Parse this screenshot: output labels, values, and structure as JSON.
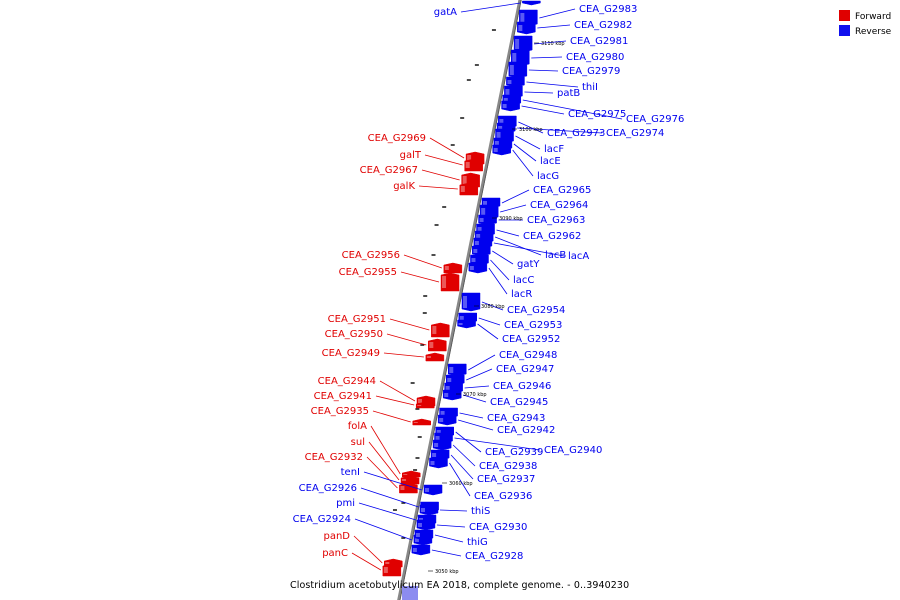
{
  "colors": {
    "forward": "#e00000",
    "reverse": "#0000ee",
    "axis": "#8a8a8a"
  },
  "legend": [
    {
      "label": "Forward",
      "color": "#e00000"
    },
    {
      "label": "Reverse",
      "color": "#1010ee"
    }
  ],
  "caption": "Clostridium acetobutylicum EA 2018, complete genome. - 0..3940230",
  "ticks": [
    "3110 kbp",
    "3100 kbp",
    "3090 kbp",
    "3080 kbp",
    "3070 kbp",
    "3060 kbp",
    "3050 kbp"
  ],
  "genes": [
    {
      "name": "gatA",
      "strand": "reverse",
      "side": "left"
    },
    {
      "name": "CEA_G2983",
      "strand": "reverse",
      "side": "right"
    },
    {
      "name": "CEA_G2982",
      "strand": "reverse",
      "side": "right"
    },
    {
      "name": "CEA_G2981",
      "strand": "reverse",
      "side": "right"
    },
    {
      "name": "CEA_G2980",
      "strand": "reverse",
      "side": "right"
    },
    {
      "name": "CEA_G2979",
      "strand": "reverse",
      "side": "right"
    },
    {
      "name": "thiI",
      "strand": "reverse",
      "side": "right"
    },
    {
      "name": "patB",
      "strand": "reverse",
      "side": "right"
    },
    {
      "name": "CEA_G2976",
      "strand": "reverse",
      "side": "right"
    },
    {
      "name": "CEA_G2975",
      "strand": "reverse",
      "side": "right"
    },
    {
      "name": "CEA_G2973",
      "strand": "reverse",
      "side": "right"
    },
    {
      "name": "CEA_G2974",
      "strand": "reverse",
      "side": "right"
    },
    {
      "name": "lacF",
      "strand": "reverse",
      "side": "right"
    },
    {
      "name": "lacE",
      "strand": "reverse",
      "side": "right"
    },
    {
      "name": "lacG",
      "strand": "reverse",
      "side": "right"
    },
    {
      "name": "CEA_G2969",
      "strand": "forward",
      "side": "left"
    },
    {
      "name": "galT",
      "strand": "forward",
      "side": "left"
    },
    {
      "name": "CEA_G2967",
      "strand": "forward",
      "side": "left"
    },
    {
      "name": "galK",
      "strand": "forward",
      "side": "left"
    },
    {
      "name": "CEA_G2965",
      "strand": "reverse",
      "side": "right"
    },
    {
      "name": "CEA_G2964",
      "strand": "reverse",
      "side": "right"
    },
    {
      "name": "CEA_G2963",
      "strand": "reverse",
      "side": "right"
    },
    {
      "name": "CEA_G2962",
      "strand": "reverse",
      "side": "right"
    },
    {
      "name": "lacB",
      "strand": "reverse",
      "side": "right"
    },
    {
      "name": "lacA",
      "strand": "reverse",
      "side": "right"
    },
    {
      "name": "gatY",
      "strand": "reverse",
      "side": "right"
    },
    {
      "name": "CEA_G2956",
      "strand": "forward",
      "side": "left"
    },
    {
      "name": "CEA_G2955",
      "strand": "forward",
      "side": "left"
    },
    {
      "name": "lacC",
      "strand": "reverse",
      "side": "right"
    },
    {
      "name": "lacR",
      "strand": "reverse",
      "side": "right"
    },
    {
      "name": "CEA_G2954",
      "strand": "reverse",
      "side": "right"
    },
    {
      "name": "CEA_G2953",
      "strand": "reverse",
      "side": "right"
    },
    {
      "name": "CEA_G2952",
      "strand": "reverse",
      "side": "right"
    },
    {
      "name": "CEA_G2951",
      "strand": "forward",
      "side": "left"
    },
    {
      "name": "CEA_G2950",
      "strand": "forward",
      "side": "left"
    },
    {
      "name": "CEA_G2949",
      "strand": "forward",
      "side": "left"
    },
    {
      "name": "CEA_G2948",
      "strand": "reverse",
      "side": "right"
    },
    {
      "name": "CEA_G2947",
      "strand": "reverse",
      "side": "right"
    },
    {
      "name": "CEA_G2946",
      "strand": "reverse",
      "side": "right"
    },
    {
      "name": "CEA_G2945",
      "strand": "reverse",
      "side": "right"
    },
    {
      "name": "CEA_G2944",
      "strand": "forward",
      "side": "left"
    },
    {
      "name": "CEA_G2941",
      "strand": "forward",
      "side": "left"
    },
    {
      "name": "CEA_G2935",
      "strand": "forward",
      "side": "left"
    },
    {
      "name": "CEA_G2943",
      "strand": "reverse",
      "side": "right"
    },
    {
      "name": "CEA_G2942",
      "strand": "reverse",
      "side": "right"
    },
    {
      "name": "folA",
      "strand": "forward",
      "side": "left"
    },
    {
      "name": "sul",
      "strand": "forward",
      "side": "left"
    },
    {
      "name": "CEA_G2939",
      "strand": "reverse",
      "side": "right"
    },
    {
      "name": "CEA_G2940",
      "strand": "reverse",
      "side": "right"
    },
    {
      "name": "CEA_G2932",
      "strand": "forward",
      "side": "left"
    },
    {
      "name": "CEA_G2938",
      "strand": "reverse",
      "side": "right"
    },
    {
      "name": "tenI",
      "strand": "reverse",
      "side": "left"
    },
    {
      "name": "CEA_G2937",
      "strand": "reverse",
      "side": "right"
    },
    {
      "name": "CEA_G2926",
      "strand": "reverse",
      "side": "left"
    },
    {
      "name": "CEA_G2936",
      "strand": "reverse",
      "side": "right"
    },
    {
      "name": "pmi",
      "strand": "reverse",
      "side": "left"
    },
    {
      "name": "thiS",
      "strand": "reverse",
      "side": "right"
    },
    {
      "name": "CEA_G2924",
      "strand": "reverse",
      "side": "left"
    },
    {
      "name": "CEA_G2930",
      "strand": "reverse",
      "side": "right"
    },
    {
      "name": "panD",
      "strand": "forward",
      "side": "left"
    },
    {
      "name": "thiG",
      "strand": "reverse",
      "side": "right"
    },
    {
      "name": "panC",
      "strand": "forward",
      "side": "left"
    },
    {
      "name": "CEA_G2928",
      "strand": "reverse",
      "side": "right"
    }
  ]
}
